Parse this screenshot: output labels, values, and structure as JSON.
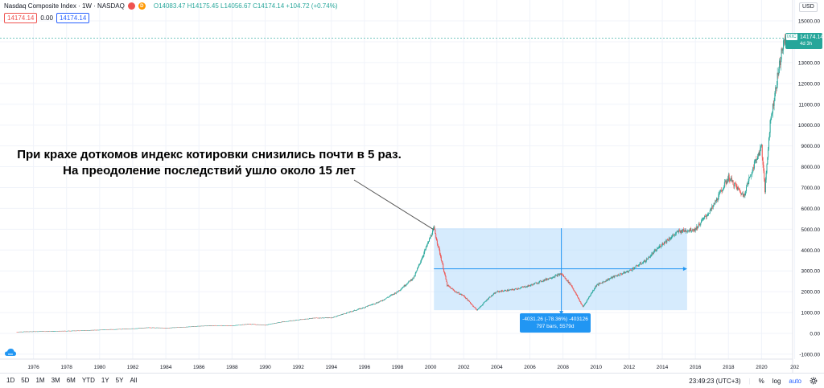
{
  "legend": {
    "title": "Nasdaq Composite Index · 1W · NASDAQ",
    "ohlc": "O14083.47 H14175.45 L14056.67 C14174.14 +104.72 (+0.74%)",
    "dot1_icon": "indicator-dot-red",
    "dot2_icon": "indicator-dot-orange",
    "dot2_letter": "D",
    "price_left": "14174.14",
    "price_mid": "0.00",
    "price_right": "14174.14"
  },
  "annotation_text": "При крахе доткомов индекс котировки снизились почти в 5 раз. На преодоление последствий ушло около 15 лет",
  "measure": {
    "line1": "-4031.26 (-78.36%) -403126",
    "line2": "797 bars, 5579d"
  },
  "price_scale": {
    "currency": "USD",
    "labels": [
      "15000.00",
      "14000.00",
      "13000.00",
      "12000.00",
      "11000.00",
      "10000.00",
      "9000.00",
      "8000.00",
      "7000.00",
      "6000.00",
      "5000.00",
      "4000.00",
      "3000.00",
      "2000.00",
      "1000.00",
      "0.00",
      "-1000.00"
    ],
    "last_symbol": "IXIC",
    "last_value": "14174.14",
    "countdown": "4d 3h"
  },
  "time_scale": {
    "labels": [
      "1976",
      "1978",
      "1980",
      "1982",
      "1984",
      "1986",
      "1988",
      "1990",
      "1992",
      "1994",
      "1996",
      "1998",
      "2000",
      "2002",
      "2004",
      "2006",
      "2008",
      "2010",
      "2012",
      "2014",
      "2016",
      "2018",
      "2020",
      "202"
    ]
  },
  "bottom_bar": {
    "ranges": [
      "1D",
      "5D",
      "1M",
      "3M",
      "6M",
      "YTD",
      "1Y",
      "5Y",
      "All"
    ],
    "clock": "23:49:23 (UTC+3)",
    "percent": "%",
    "log": "log",
    "auto": "auto",
    "settings_icon": "gear-icon"
  },
  "colors": {
    "up": "#26a69a",
    "down": "#ef5350",
    "measure_fill": "#bbdefb",
    "measure_line": "#2196f3"
  },
  "chart_data": {
    "type": "candlestick",
    "x_range": [
      1974.5,
      2021.9
    ],
    "y_range": [
      -1000,
      15000
    ],
    "series_points": [
      [
        1975,
        75
      ],
      [
        1976,
        90
      ],
      [
        1977,
        100
      ],
      [
        1978,
        118
      ],
      [
        1979,
        135
      ],
      [
        1980,
        170
      ],
      [
        1981,
        200
      ],
      [
        1982,
        230
      ],
      [
        1983,
        280
      ],
      [
        1984,
        260
      ],
      [
        1985,
        300
      ],
      [
        1986,
        350
      ],
      [
        1987,
        380
      ],
      [
        1988,
        370
      ],
      [
        1989,
        450
      ],
      [
        1990,
        400
      ],
      [
        1991,
        550
      ],
      [
        1992,
        650
      ],
      [
        1993,
        740
      ],
      [
        1994,
        750
      ],
      [
        1995,
        1000
      ],
      [
        1996,
        1250
      ],
      [
        1997,
        1550
      ],
      [
        1998,
        2000
      ],
      [
        1999,
        2700
      ],
      [
        2000.2,
        5048
      ],
      [
        2000.6,
        3700
      ],
      [
        2001,
        2300
      ],
      [
        2001.5,
        2000
      ],
      [
        2002,
        1800
      ],
      [
        2002.8,
        1114
      ],
      [
        2003.5,
        1700
      ],
      [
        2004,
        2000
      ],
      [
        2005,
        2100
      ],
      [
        2006,
        2300
      ],
      [
        2007,
        2600
      ],
      [
        2007.9,
        2859
      ],
      [
        2008.5,
        2300
      ],
      [
        2009.2,
        1268
      ],
      [
        2010,
        2300
      ],
      [
        2011,
        2700
      ],
      [
        2012,
        3000
      ],
      [
        2013,
        3500
      ],
      [
        2014,
        4300
      ],
      [
        2015,
        4900
      ],
      [
        2016,
        5000
      ],
      [
        2017,
        6000
      ],
      [
        2018,
        7500
      ],
      [
        2018.9,
        6600
      ],
      [
        2019.5,
        8000
      ],
      [
        2020,
        9000
      ],
      [
        2020.2,
        6860
      ],
      [
        2020.5,
        10000
      ],
      [
        2020.8,
        11500
      ],
      [
        2021.2,
        13500
      ],
      [
        2021.45,
        14174
      ]
    ],
    "measure_range": {
      "x": [
        2000.2,
        2015.5
      ],
      "y": [
        1114,
        5048
      ]
    },
    "horizontal_level": 3100,
    "vertical_line_x": 2007.9
  }
}
